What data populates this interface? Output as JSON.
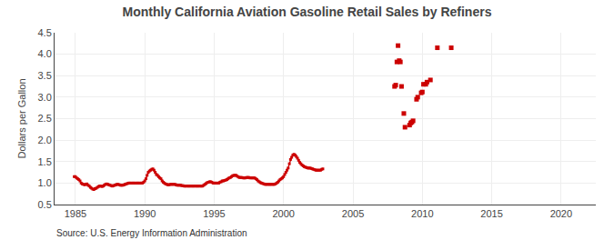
{
  "chart_data": {
    "type": "line",
    "title": "Monthly California Aviation Gasoline Retail Sales by Refiners",
    "y_label": "Dollars per Gallon",
    "annotations": [
      "Source: U.S. Energy Information Administration"
    ],
    "xlim": [
      1983.5,
      2022.5
    ],
    "ylim": [
      0.5,
      4.5
    ],
    "xticks": [
      1985,
      1990,
      1995,
      2000,
      2005,
      2010,
      2015,
      2020
    ],
    "yticks": [
      0.5,
      {
        "value": 1.0,
        "label": "1.0"
      },
      1.5,
      {
        "value": 2.0,
        "label": "2.0"
      },
      2.5,
      {
        "value": 3.0,
        "label": "3.0"
      },
      3.5,
      {
        "value": 4.0,
        "label": "4.0"
      },
      4.5
    ],
    "grid": true,
    "series": [
      {
        "type": "line",
        "marker": "square",
        "color": "#cc0000",
        "x": [
          1984.917,
          1985.0,
          1985.083,
          1985.167,
          1985.25,
          1985.333,
          1985.417,
          1985.5,
          1985.583,
          1985.667,
          1985.75,
          1985.833,
          1985.917,
          1986.0,
          1986.083,
          1986.167,
          1986.25,
          1986.333,
          1986.417,
          1986.5,
          1986.583,
          1986.667,
          1986.75,
          1986.833,
          1986.917,
          1987.0,
          1987.083,
          1987.167,
          1987.25,
          1987.333,
          1987.417,
          1987.5,
          1987.583,
          1987.667,
          1987.75,
          1987.833,
          1987.917,
          1988.0,
          1988.083,
          1988.167,
          1988.25,
          1988.333,
          1988.417,
          1988.5,
          1988.583,
          1988.667,
          1988.75,
          1988.833,
          1988.917,
          1989.0,
          1989.083,
          1989.167,
          1989.25,
          1989.333,
          1989.417,
          1989.5,
          1989.583,
          1989.667,
          1989.75,
          1989.833,
          1989.917,
          1990.0,
          1990.083,
          1990.167,
          1990.25,
          1990.333,
          1990.417,
          1990.5,
          1990.583,
          1990.667,
          1990.75,
          1990.833,
          1990.917,
          1991.0,
          1991.083,
          1991.167,
          1991.25,
          1991.333,
          1991.417,
          1991.5,
          1991.583,
          1991.667,
          1991.75,
          1991.833,
          1991.917,
          1992.0,
          1992.083,
          1992.167,
          1992.25,
          1992.333,
          1992.417,
          1992.5,
          1992.583,
          1992.667,
          1992.75,
          1992.833,
          1992.917,
          1993.0,
          1993.083,
          1993.167,
          1993.25,
          1993.333,
          1993.417,
          1993.5,
          1993.583,
          1993.667,
          1993.75,
          1993.833,
          1993.917,
          1994.0,
          1994.083,
          1994.167,
          1994.25,
          1994.333,
          1994.417,
          1994.5,
          1994.583,
          1994.667,
          1994.75,
          1994.833,
          1994.917,
          1995.0,
          1995.083,
          1995.167,
          1995.25,
          1995.333,
          1995.417,
          1995.5,
          1995.583,
          1995.667,
          1995.75,
          1995.833,
          1995.917,
          1996.0,
          1996.083,
          1996.167,
          1996.25,
          1996.333,
          1996.417,
          1996.5,
          1996.583,
          1996.667,
          1996.75,
          1996.833,
          1996.917,
          1997.0,
          1997.083,
          1997.167,
          1997.25,
          1997.333,
          1997.417,
          1997.5,
          1997.583,
          1997.667,
          1997.75,
          1997.833,
          1997.917,
          1998.0,
          1998.083,
          1998.167,
          1998.25,
          1998.333,
          1998.417,
          1998.5,
          1998.583,
          1998.667,
          1998.75,
          1998.833,
          1998.917,
          1999.0,
          1999.083,
          1999.167,
          1999.25,
          1999.333,
          1999.417,
          1999.5,
          1999.583,
          1999.667,
          1999.75,
          1999.833,
          1999.917,
          2000.0,
          2000.083,
          2000.167,
          2000.25,
          2000.333,
          2000.417,
          2000.5,
          2000.583,
          2000.667,
          2000.75,
          2000.833,
          2000.917,
          2001.0,
          2001.083,
          2001.167,
          2001.25,
          2001.333,
          2001.417,
          2001.5,
          2001.583,
          2001.667,
          2001.75,
          2001.833,
          2001.917,
          2002.0,
          2002.083,
          2002.167,
          2002.25,
          2002.333,
          2002.417,
          2002.5,
          2002.583,
          2002.667,
          2002.75,
          2002.833
        ],
        "values": [
          1.15,
          1.15,
          1.12,
          1.1,
          1.08,
          1.05,
          1.0,
          0.98,
          0.97,
          0.96,
          0.97,
          0.98,
          0.95,
          0.93,
          0.9,
          0.88,
          0.86,
          0.85,
          0.87,
          0.88,
          0.9,
          0.92,
          0.93,
          0.93,
          0.92,
          0.93,
          0.95,
          0.97,
          0.98,
          0.97,
          0.96,
          0.95,
          0.94,
          0.93,
          0.94,
          0.95,
          0.96,
          0.97,
          0.97,
          0.96,
          0.95,
          0.95,
          0.95,
          0.96,
          0.97,
          0.98,
          0.99,
          1.0,
          1.0,
          1.0,
          1.0,
          1.0,
          1.0,
          1.0,
          1.0,
          1.0,
          1.0,
          1.0,
          1.0,
          1.0,
          1.02,
          1.05,
          1.1,
          1.18,
          1.25,
          1.28,
          1.3,
          1.32,
          1.33,
          1.3,
          1.25,
          1.2,
          1.18,
          1.15,
          1.12,
          1.1,
          1.05,
          1.02,
          1.0,
          0.98,
          0.97,
          0.96,
          0.96,
          0.97,
          0.97,
          0.97,
          0.97,
          0.97,
          0.96,
          0.95,
          0.95,
          0.95,
          0.95,
          0.94,
          0.94,
          0.93,
          0.93,
          0.93,
          0.93,
          0.93,
          0.93,
          0.93,
          0.93,
          0.93,
          0.93,
          0.93,
          0.93,
          0.93,
          0.93,
          0.93,
          0.93,
          0.93,
          0.95,
          0.97,
          0.99,
          1.01,
          1.02,
          1.03,
          1.03,
          1.02,
          1.0,
          1.0,
          1.0,
          1.0,
          1.0,
          1.0,
          1.02,
          1.03,
          1.05,
          1.05,
          1.06,
          1.07,
          1.08,
          1.1,
          1.12,
          1.13,
          1.15,
          1.17,
          1.18,
          1.18,
          1.18,
          1.16,
          1.14,
          1.13,
          1.13,
          1.13,
          1.12,
          1.12,
          1.12,
          1.13,
          1.13,
          1.13,
          1.12,
          1.12,
          1.12,
          1.12,
          1.12,
          1.1,
          1.08,
          1.05,
          1.03,
          1.01,
          1.0,
          0.99,
          0.98,
          0.97,
          0.97,
          0.97,
          0.97,
          0.97,
          0.97,
          0.97,
          0.97,
          0.97,
          0.98,
          1.0,
          1.02,
          1.05,
          1.08,
          1.1,
          1.12,
          1.15,
          1.2,
          1.25,
          1.3,
          1.35,
          1.45,
          1.55,
          1.6,
          1.65,
          1.67,
          1.65,
          1.62,
          1.58,
          1.53,
          1.48,
          1.45,
          1.42,
          1.4,
          1.38,
          1.37,
          1.36,
          1.35,
          1.35,
          1.35,
          1.34,
          1.33,
          1.32,
          1.31,
          1.3,
          1.3,
          1.3,
          1.3,
          1.3,
          1.32,
          1.33
        ]
      },
      {
        "type": "scatter",
        "marker": "square",
        "color": "#cc0000",
        "x": [
          2008.0,
          2008.083,
          2008.167,
          2008.25,
          2008.333,
          2008.417,
          2008.5,
          2008.667,
          2008.75,
          2009.083,
          2009.167,
          2009.25,
          2009.333,
          2009.583,
          2009.667,
          2009.917,
          2010.0,
          2010.083,
          2010.25,
          2010.333,
          2010.583,
          2011.083,
          2012.083
        ],
        "values": [
          3.25,
          3.28,
          3.82,
          4.2,
          3.85,
          3.82,
          3.25,
          2.62,
          2.3,
          2.35,
          2.4,
          2.42,
          2.45,
          2.95,
          3.0,
          3.1,
          3.12,
          3.3,
          3.3,
          3.35,
          3.4,
          4.15,
          4.15
        ]
      }
    ]
  }
}
